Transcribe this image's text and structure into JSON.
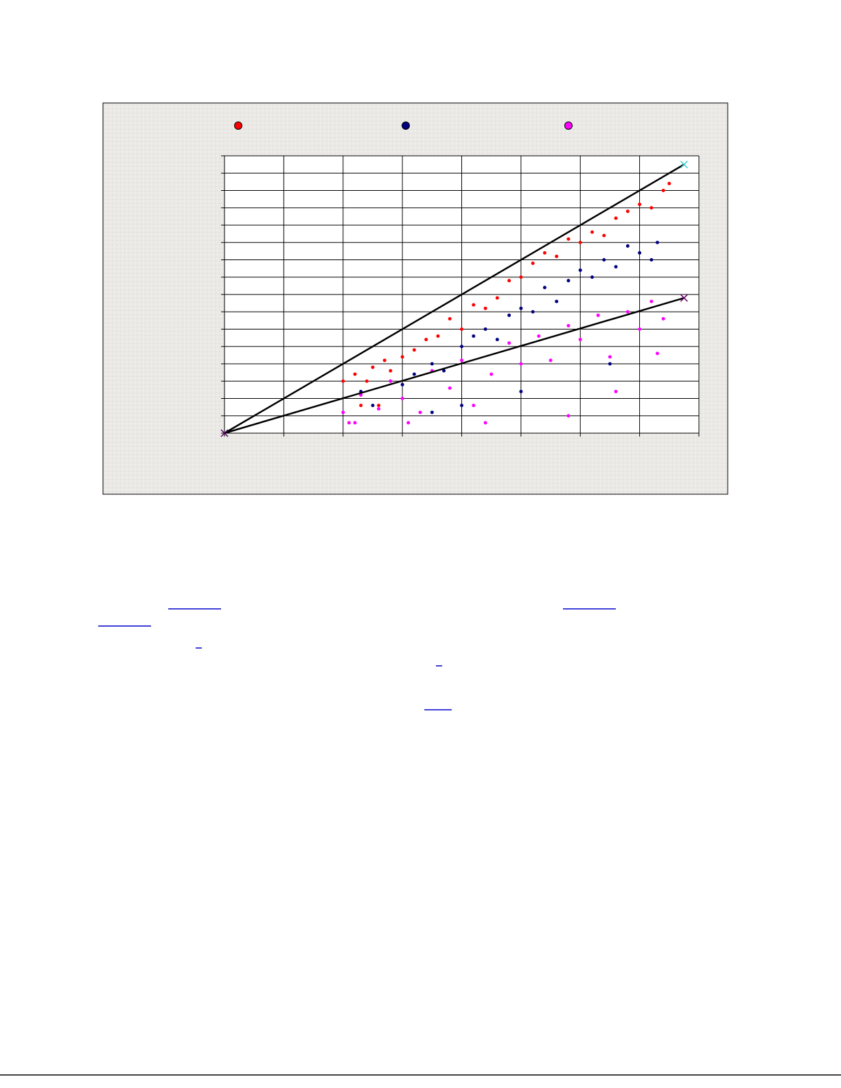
{
  "chart_data": {
    "type": "scatter",
    "xlim": [
      0,
      8
    ],
    "ylim": [
      0,
      16
    ],
    "xticks": [
      0,
      1,
      2,
      3,
      4,
      5,
      6,
      7,
      8
    ],
    "yticks": [
      0,
      1,
      2,
      3,
      4,
      5,
      6,
      7,
      8,
      9,
      10,
      11,
      12,
      13,
      14,
      15,
      16
    ],
    "grid": true,
    "series": [
      {
        "color": "#ff0000",
        "x": [
          2.0,
          2.2,
          2.4,
          2.5,
          2.7,
          2.8,
          3.0,
          3.2,
          3.4,
          3.6,
          3.8,
          4.0,
          4.2,
          4.4,
          4.6,
          4.8,
          5.0,
          5.2,
          5.4,
          5.6,
          5.8,
          6.0,
          6.2,
          6.4,
          6.6,
          6.8,
          7.0,
          7.2,
          7.4,
          7.5,
          2.3,
          2.6
        ],
        "values": [
          3.0,
          3.4,
          3.0,
          3.8,
          4.2,
          3.6,
          4.4,
          4.8,
          5.4,
          5.6,
          6.6,
          6.0,
          7.4,
          7.2,
          7.8,
          8.8,
          9.0,
          9.8,
          10.4,
          10.2,
          11.2,
          11.0,
          11.6,
          11.4,
          12.4,
          12.8,
          13.2,
          13.0,
          14.0,
          14.4,
          1.6,
          1.6
        ]
      },
      {
        "color": "#000080",
        "x": [
          2.3,
          2.5,
          2.8,
          3.0,
          3.2,
          3.5,
          3.7,
          4.0,
          4.2,
          4.4,
          4.6,
          4.8,
          5.0,
          5.2,
          5.4,
          5.6,
          5.8,
          6.0,
          6.2,
          6.4,
          6.6,
          6.8,
          7.0,
          7.2,
          7.3,
          3.5,
          4.0,
          5.0,
          6.5
        ],
        "values": [
          2.4,
          1.6,
          3.0,
          2.8,
          3.4,
          4.0,
          3.6,
          5.0,
          5.6,
          6.0,
          5.4,
          6.8,
          7.2,
          7.0,
          8.4,
          7.6,
          8.8,
          9.4,
          9.0,
          10.0,
          9.6,
          10.8,
          10.4,
          10.0,
          11.0,
          1.2,
          1.6,
          2.4,
          4.0
        ]
      },
      {
        "color": "#ff00ff",
        "x": [
          2.0,
          2.1,
          2.3,
          2.6,
          2.8,
          3.0,
          3.3,
          3.5,
          3.8,
          4.0,
          4.2,
          4.5,
          4.8,
          5.0,
          5.3,
          5.5,
          5.8,
          6.0,
          6.3,
          6.5,
          6.8,
          7.0,
          7.2,
          7.4,
          2.2,
          3.1,
          4.4,
          5.8,
          6.6,
          7.3
        ],
        "values": [
          1.2,
          0.6,
          2.2,
          1.4,
          3.0,
          2.0,
          1.2,
          3.6,
          2.6,
          4.2,
          1.6,
          3.4,
          5.2,
          4.0,
          5.6,
          4.2,
          6.2,
          5.4,
          6.8,
          4.4,
          7.0,
          6.0,
          7.6,
          6.6,
          0.6,
          0.6,
          0.6,
          1.0,
          2.4,
          4.6
        ]
      },
      {
        "type": "line",
        "color": "#000000",
        "marker_color": "#33cccc",
        "x": [
          0,
          7.75
        ],
        "values": [
          0,
          15.5
        ]
      },
      {
        "type": "line",
        "color": "#000000",
        "marker_color": "#660066",
        "x": [
          0,
          7.75
        ],
        "values": [
          0,
          7.8
        ]
      }
    ],
    "legend": "top"
  }
}
